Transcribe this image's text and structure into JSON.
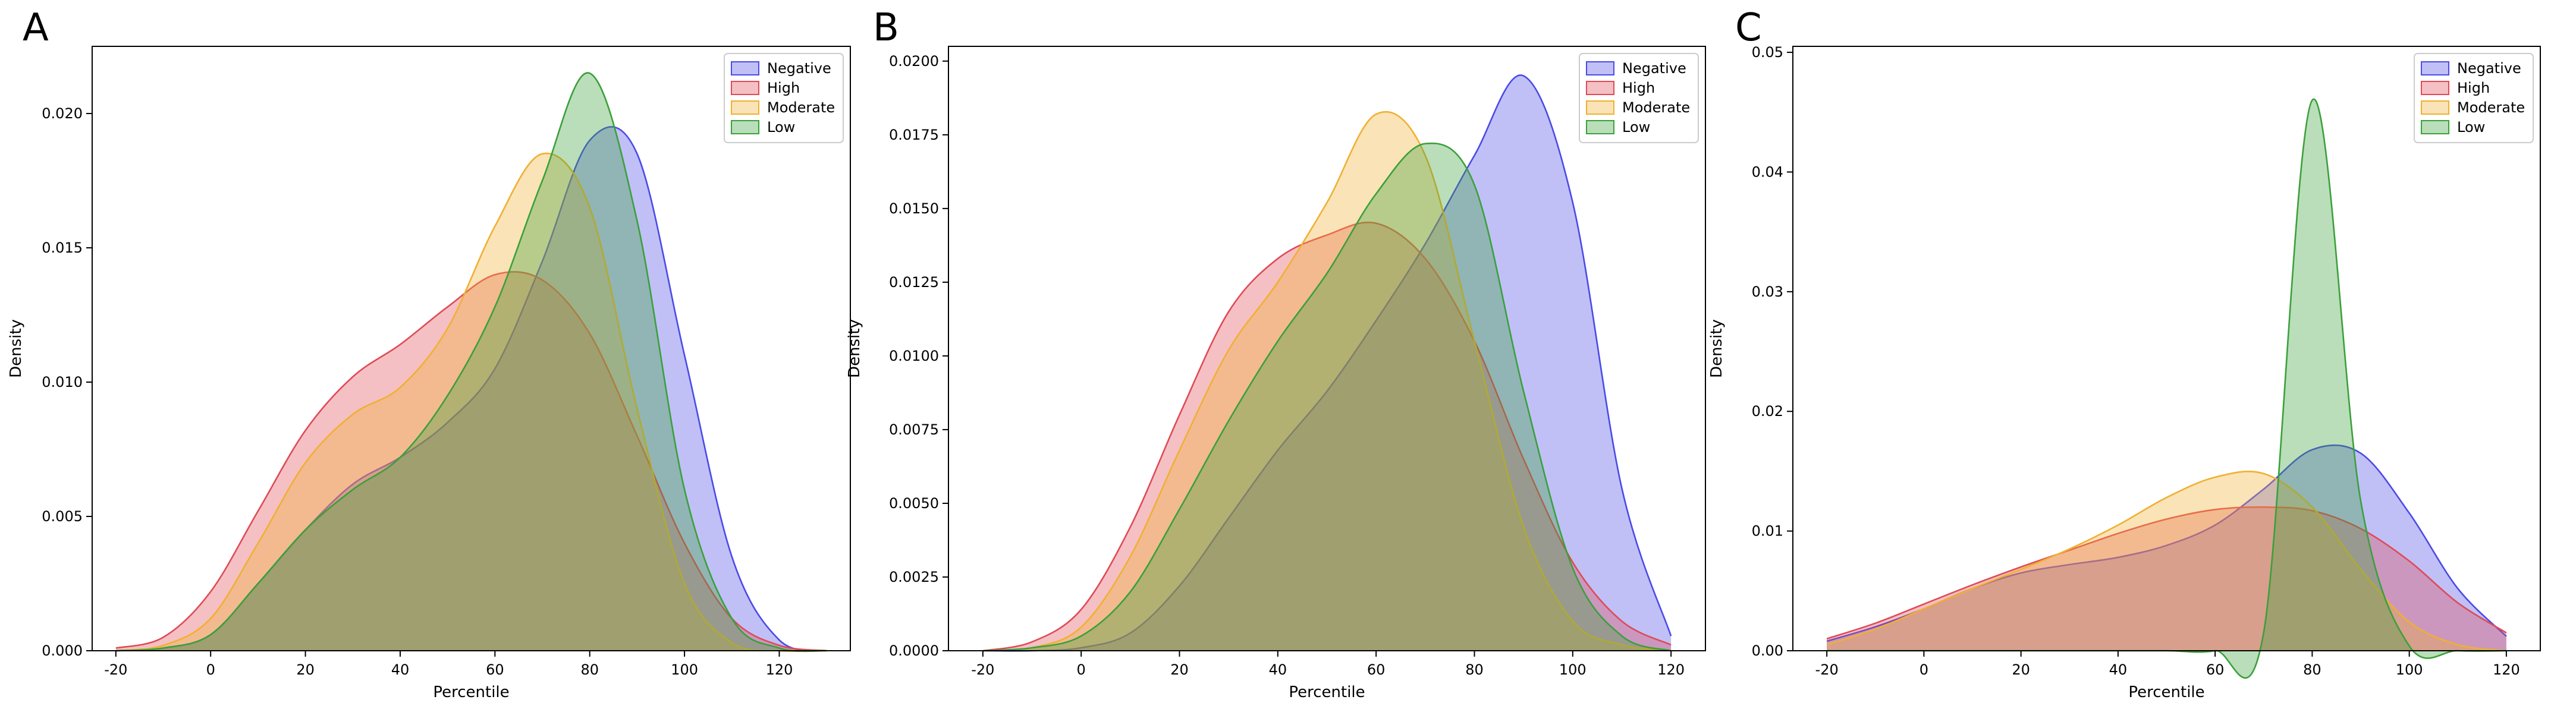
{
  "colors": {
    "Negative": "#4a4ae8",
    "High": "#e04a55",
    "Moderate": "#f0b030",
    "Low": "#3aa03a"
  },
  "chart_data": [
    {
      "type": "area",
      "panel": "A",
      "xlabel": "Percentile",
      "ylabel": "Density",
      "xlim": [
        -25,
        135
      ],
      "ylim": [
        0,
        0.0225
      ],
      "xticks": [
        -20,
        0,
        20,
        40,
        60,
        80,
        100,
        120
      ],
      "yticks": [
        0.0,
        0.005,
        0.01,
        0.015,
        0.02
      ],
      "ytick_labels": [
        "0.000",
        "0.005",
        "0.010",
        "0.015",
        "0.020"
      ],
      "legend": "top-right",
      "x": [
        -20,
        -10,
        0,
        10,
        20,
        30,
        40,
        50,
        60,
        70,
        80,
        90,
        100,
        110,
        120,
        130
      ],
      "series": [
        {
          "name": "Negative",
          "values": [
            0,
            0.0001,
            0.0006,
            0.0025,
            0.0045,
            0.0062,
            0.0072,
            0.0085,
            0.0105,
            0.0145,
            0.019,
            0.0185,
            0.011,
            0.0035,
            0.0004,
            0
          ]
        },
        {
          "name": "High",
          "values": [
            0.0001,
            0.0005,
            0.0022,
            0.0052,
            0.0082,
            0.0102,
            0.0114,
            0.0128,
            0.014,
            0.0138,
            0.0118,
            0.008,
            0.004,
            0.0012,
            0.0002,
            0
          ]
        },
        {
          "name": "Moderate",
          "values": [
            0,
            0.0002,
            0.0012,
            0.004,
            0.007,
            0.0088,
            0.0098,
            0.012,
            0.0158,
            0.0185,
            0.0165,
            0.009,
            0.0025,
            0.0003,
            0,
            0
          ]
        },
        {
          "name": "Low",
          "values": [
            0,
            0.0001,
            0.0006,
            0.0025,
            0.0045,
            0.006,
            0.0072,
            0.0095,
            0.0128,
            0.0175,
            0.0215,
            0.016,
            0.006,
            0.0012,
            0.0001,
            0
          ]
        }
      ]
    },
    {
      "type": "area",
      "panel": "B",
      "xlabel": "Percentile",
      "ylabel": "Density",
      "xlim": [
        -27,
        127
      ],
      "ylim": [
        0,
        0.0205
      ],
      "xticks": [
        -20,
        0,
        20,
        40,
        60,
        80,
        100,
        120
      ],
      "yticks": [
        0.0,
        0.0025,
        0.005,
        0.0075,
        0.01,
        0.0125,
        0.015,
        0.0175,
        0.02
      ],
      "ytick_labels": [
        "0.0000",
        "0.0025",
        "0.0050",
        "0.0075",
        "0.0100",
        "0.0125",
        "0.0150",
        "0.0175",
        "0.0200"
      ],
      "legend": "top-right",
      "x": [
        -20,
        -10,
        0,
        10,
        20,
        30,
        40,
        50,
        60,
        70,
        80,
        90,
        100,
        110,
        120
      ],
      "series": [
        {
          "name": "Negative",
          "values": [
            0,
            0,
            0.0001,
            0.0006,
            0.0022,
            0.0045,
            0.0068,
            0.0088,
            0.0112,
            0.0138,
            0.0168,
            0.0195,
            0.0152,
            0.0055,
            0.0005
          ]
        },
        {
          "name": "High",
          "values": [
            0,
            0.0003,
            0.0014,
            0.0042,
            0.008,
            0.0115,
            0.0133,
            0.0141,
            0.0145,
            0.0133,
            0.0105,
            0.0065,
            0.003,
            0.001,
            0.0002
          ]
        },
        {
          "name": "Moderate",
          "values": [
            0,
            0.0001,
            0.0008,
            0.0032,
            0.0068,
            0.0102,
            0.0125,
            0.0152,
            0.0182,
            0.0168,
            0.0105,
            0.0042,
            0.001,
            0.0002,
            0
          ]
        },
        {
          "name": "Low",
          "values": [
            0,
            0.0001,
            0.0005,
            0.002,
            0.0048,
            0.0078,
            0.0105,
            0.0128,
            0.0155,
            0.0172,
            0.0158,
            0.0088,
            0.0028,
            0.0005,
            0
          ]
        }
      ]
    },
    {
      "type": "area",
      "panel": "C",
      "xlabel": "Percentile",
      "ylabel": "Density",
      "xlim": [
        -27,
        127
      ],
      "ylim": [
        0,
        0.0505
      ],
      "xticks": [
        -20,
        0,
        20,
        40,
        60,
        80,
        100,
        120
      ],
      "yticks": [
        0.0,
        0.01,
        0.02,
        0.03,
        0.04,
        0.05
      ],
      "ytick_labels": [
        "0.00",
        "0.01",
        "0.02",
        "0.03",
        "0.04",
        "0.05"
      ],
      "legend": "top-right",
      "x": [
        -20,
        -10,
        0,
        10,
        20,
        30,
        40,
        50,
        60,
        70,
        80,
        90,
        100,
        110,
        120
      ],
      "series": [
        {
          "name": "Negative",
          "values": [
            0.0008,
            0.002,
            0.0035,
            0.0052,
            0.0065,
            0.0072,
            0.0078,
            0.0088,
            0.0105,
            0.0135,
            0.0168,
            0.0165,
            0.0115,
            0.0052,
            0.0012
          ]
        },
        {
          "name": "High",
          "values": [
            0.001,
            0.0023,
            0.0039,
            0.0055,
            0.007,
            0.0084,
            0.0098,
            0.011,
            0.0118,
            0.012,
            0.0117,
            0.0102,
            0.0075,
            0.004,
            0.0015
          ]
        },
        {
          "name": "Moderate",
          "values": [
            0.0005,
            0.0018,
            0.0035,
            0.0052,
            0.0068,
            0.0085,
            0.0105,
            0.0128,
            0.0145,
            0.0148,
            0.012,
            0.0068,
            0.0024,
            0.0005,
            0
          ]
        },
        {
          "name": "Low",
          "values": [
            0,
            0,
            0,
            0,
            0,
            0,
            0,
            0,
            0,
            0.0015,
            0.046,
            0.0125,
            0.0004,
            0,
            0
          ]
        }
      ]
    }
  ]
}
